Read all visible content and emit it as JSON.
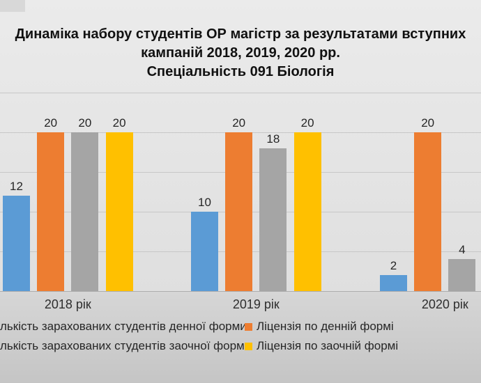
{
  "title": {
    "line1": "Динаміка набору студентів ОР магістр за результатами вступних",
    "line2": "кампаній 2018, 2019, 2020 рр.",
    "line3": "Спеціальність 091 Біологія"
  },
  "chart_data": {
    "type": "bar",
    "categories": [
      "2018 рік",
      "2019 рік",
      "2020 рік"
    ],
    "series": [
      {
        "name": "лькість зарахованих студентів денної форми",
        "color": "#5B9BD5",
        "values": [
          12,
          10,
          2
        ]
      },
      {
        "name": "Ліцензія по денній формі",
        "color": "#ED7D31",
        "values": [
          20,
          20,
          20
        ]
      },
      {
        "name": "лькість зарахованих студентів заочної форми",
        "color": "#A5A5A5",
        "values": [
          20,
          18,
          4
        ]
      },
      {
        "name": "Ліцензія по заочній формі",
        "color": "#FFC000",
        "values": [
          20,
          20,
          null
        ]
      }
    ],
    "ylim": [
      0,
      25
    ],
    "gridline_step": 5,
    "grid": true,
    "data_labels": true,
    "legend_position": "bottom",
    "note": "left legend markers and fourth 2020 bar are cropped outside the visible frame"
  },
  "legend": [
    {
      "label": "лькість зарахованих студентів денної форми",
      "color": null,
      "row": 0,
      "col": "left"
    },
    {
      "label": "Ліцензія по денній формі",
      "color": "#ED7D31",
      "row": 0,
      "col": "right"
    },
    {
      "label": "лькість зарахованих студентів заочної форми",
      "color": null,
      "row": 1,
      "col": "left"
    },
    {
      "label": "Ліцензія по заочній формі",
      "color": "#FFC000",
      "row": 1,
      "col": "right"
    }
  ],
  "colors": {
    "blue": "#5B9BD5",
    "orange": "#ED7D31",
    "gray": "#A5A5A5",
    "yellow": "#FFC000"
  }
}
